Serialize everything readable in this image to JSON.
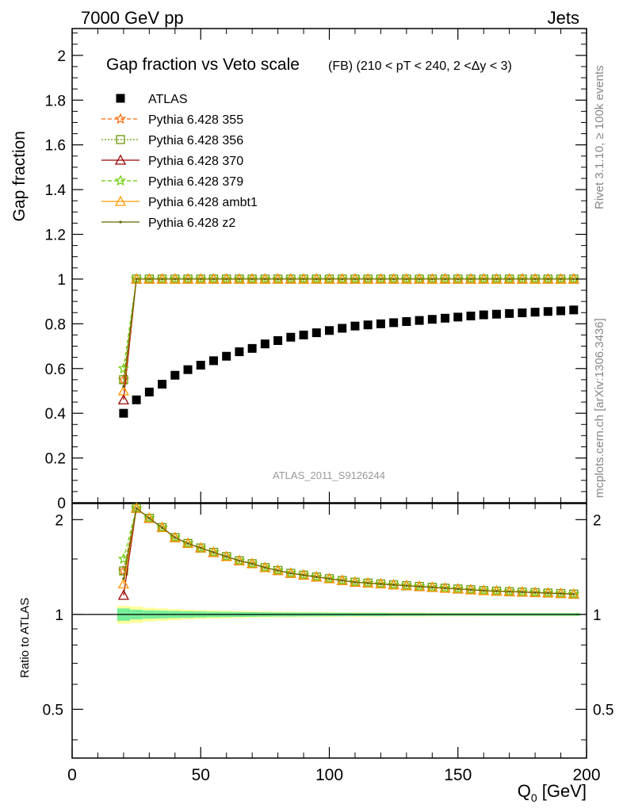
{
  "header": {
    "left": "7000 GeV pp",
    "right": "Jets"
  },
  "side_labels": {
    "top": "Rivet 3.1.10, ≥ 100k events",
    "bottom": "mcplots.cern.ch [arXiv:1306.3436]"
  },
  "chart_data": {
    "type": "scatter",
    "title": "Gap fraction vs Veto scale",
    "subtitle": "(FB) (210 < pT < 240, 2 <Δy < 3)",
    "analysis_label": "ATLAS_2011_S9126244",
    "xlabel": "Q",
    "xlabel_sub": "0",
    "xlabel_unit": " [GeV]",
    "ylabel": "Gap fraction",
    "ratio_ylabel": "Ratio to ATLAS",
    "xlim": [
      0,
      200
    ],
    "ylim": [
      0,
      2.12
    ],
    "ratio_ylim": [
      0.35,
      2.25
    ],
    "x_ticks": [
      0,
      50,
      100,
      150,
      200
    ],
    "x_tick_labels": [
      "0",
      "50",
      "100",
      "150",
      "200"
    ],
    "y_ticks": [
      0.2,
      0.4,
      0.6,
      0.8,
      1,
      1.2,
      1.4,
      1.6,
      1.8,
      2
    ],
    "y_tick_labels": [
      "0.2",
      "0.4",
      "0.6",
      "0.8",
      "1",
      "1.2",
      "1.4",
      "1.6",
      "1.8",
      "2"
    ],
    "y_zero_label": "0",
    "ratio_ticks": [
      0.5,
      1,
      2
    ],
    "ratio_tick_labels": [
      "0.5",
      "1",
      "2"
    ],
    "x": [
      20,
      25,
      30,
      35,
      40,
      45,
      50,
      55,
      60,
      65,
      70,
      75,
      80,
      85,
      90,
      95,
      100,
      105,
      110,
      115,
      120,
      125,
      130,
      135,
      140,
      145,
      150,
      155,
      160,
      165,
      170,
      175,
      180,
      185,
      190,
      195
    ],
    "series": [
      {
        "name": "ATLAS",
        "color": "#000000",
        "marker": "square",
        "values": [
          0.4,
          0.46,
          0.495,
          0.53,
          0.57,
          0.595,
          0.615,
          0.635,
          0.655,
          0.675,
          0.69,
          0.71,
          0.725,
          0.74,
          0.75,
          0.76,
          0.77,
          0.78,
          0.79,
          0.795,
          0.8,
          0.805,
          0.81,
          0.815,
          0.82,
          0.825,
          0.83,
          0.835,
          0.84,
          0.843,
          0.846,
          0.849,
          0.852,
          0.855,
          0.858,
          0.862
        ]
      },
      {
        "name": "Pythia 6.428 355",
        "color": "#ff6600",
        "marker": "star",
        "dash": "5,3",
        "values": [
          0.55,
          1,
          1,
          1,
          1,
          1,
          1,
          1,
          1,
          1,
          1,
          1,
          1,
          1,
          1,
          1,
          1,
          1,
          1,
          1,
          1,
          1,
          1,
          1,
          1,
          1,
          1,
          1,
          1,
          1,
          1,
          1,
          1,
          1,
          1,
          1
        ]
      },
      {
        "name": "Pythia 6.428 356",
        "color": "#669900",
        "marker": "open-square",
        "dash": "2,2",
        "values": [
          0.55,
          1,
          1,
          1,
          1,
          1,
          1,
          1,
          1,
          1,
          1,
          1,
          1,
          1,
          1,
          1,
          1,
          1,
          1,
          1,
          1,
          1,
          1,
          1,
          1,
          1,
          1,
          1,
          1,
          1,
          1,
          1,
          1,
          1,
          1,
          1
        ]
      },
      {
        "name": "Pythia 6.428 370",
        "color": "#990000",
        "marker": "open-triangle",
        "dash": "",
        "values": [
          0.46,
          1,
          1,
          1,
          1,
          1,
          1,
          1,
          1,
          1,
          1,
          1,
          1,
          1,
          1,
          1,
          1,
          1,
          1,
          1,
          1,
          1,
          1,
          1,
          1,
          1,
          1,
          1,
          1,
          1,
          1,
          1,
          1,
          1,
          1,
          1
        ]
      },
      {
        "name": "Pythia 6.428 379",
        "color": "#66cc00",
        "marker": "star",
        "dash": "5,3",
        "values": [
          0.6,
          1,
          1,
          1,
          1,
          1,
          1,
          1,
          1,
          1,
          1,
          1,
          1,
          1,
          1,
          1,
          1,
          1,
          1,
          1,
          1,
          1,
          1,
          1,
          1,
          1,
          1,
          1,
          1,
          1,
          1,
          1,
          1,
          1,
          1,
          1
        ]
      },
      {
        "name": "Pythia 6.428 ambt1",
        "color": "#ff9900",
        "marker": "open-triangle",
        "dash": "",
        "values": [
          0.5,
          1,
          1,
          1,
          1,
          1,
          1,
          1,
          1,
          1,
          1,
          1,
          1,
          1,
          1,
          1,
          1,
          1,
          1,
          1,
          1,
          1,
          1,
          1,
          1,
          1,
          1,
          1,
          1,
          1,
          1,
          1,
          1,
          1,
          1,
          1
        ]
      },
      {
        "name": "Pythia 6.428 z2",
        "color": "#666600",
        "marker": "dot",
        "dash": "",
        "values": [
          0.52,
          1,
          1,
          1,
          1,
          1,
          1,
          1,
          1,
          1,
          1,
          1,
          1,
          1,
          1,
          1,
          1,
          1,
          1,
          1,
          1,
          1,
          1,
          1,
          1,
          1,
          1,
          1,
          1,
          1,
          1,
          1,
          1,
          1,
          1,
          1
        ]
      }
    ],
    "band_colors": {
      "inner": "#77ee99",
      "outer": "#ffff99"
    },
    "band_inner_halfwidth": [
      0.045,
      0.035,
      0.03,
      0.028,
      0.026,
      0.024,
      0.022,
      0.02,
      0.019,
      0.018,
      0.017,
      0.016,
      0.015,
      0.015,
      0.014,
      0.014,
      0.013,
      0.013,
      0.012,
      0.012,
      0.012,
      0.011,
      0.011,
      0.011,
      0.01,
      0.01,
      0.01,
      0.01,
      0.01,
      0.01,
      0.01,
      0.01,
      0.01,
      0.01,
      0.01,
      0.01
    ],
    "band_outer_halfwidth": [
      0.065,
      0.06,
      0.05,
      0.045,
      0.04,
      0.035,
      0.032,
      0.03,
      0.028,
      0.026,
      0.024,
      0.022,
      0.021,
      0.02,
      0.019,
      0.018,
      0.018,
      0.017,
      0.017,
      0.016,
      0.016,
      0.015,
      0.015,
      0.015,
      0.014,
      0.014,
      0.014,
      0.014,
      0.013,
      0.013,
      0.013,
      0.013,
      0.013,
      0.013,
      0.013,
      0.013
    ]
  }
}
